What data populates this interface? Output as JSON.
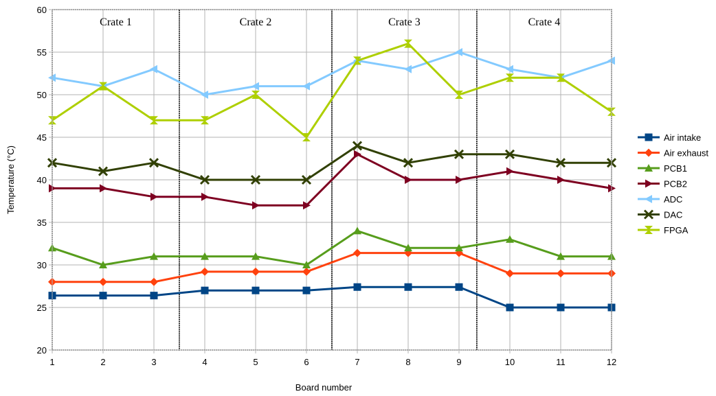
{
  "chart_data": {
    "type": "line",
    "title": "",
    "xlabel": "Board number",
    "ylabel": "Temperature (°C)",
    "x": [
      1,
      2,
      3,
      4,
      5,
      6,
      7,
      8,
      9,
      10,
      11,
      12
    ],
    "xlim": [
      1,
      12
    ],
    "ylim": [
      20,
      60
    ],
    "yticks": [
      20,
      25,
      30,
      35,
      40,
      45,
      50,
      55,
      60
    ],
    "grid": true,
    "legend": "right",
    "crates": [
      {
        "label": "Crate 1",
        "from": 1,
        "to": 3.5
      },
      {
        "label": "Crate 2",
        "from": 3.5,
        "to": 6.5
      },
      {
        "label": "Crate 3",
        "from": 6.5,
        "to": 9.35
      },
      {
        "label": "Crate 4",
        "from": 9.35,
        "to": 12
      }
    ],
    "series": [
      {
        "name": "Air intake",
        "color": "#004586",
        "marker": "square",
        "values": [
          26.4,
          26.4,
          26.4,
          27,
          27,
          27,
          27.4,
          27.4,
          27.4,
          25,
          25,
          25
        ]
      },
      {
        "name": "Air exhaust",
        "color": "#ff420e",
        "marker": "diamond",
        "values": [
          28,
          28,
          28,
          29.2,
          29.2,
          29.2,
          31.4,
          31.4,
          31.4,
          29,
          29,
          29
        ]
      },
      {
        "name": "PCB1",
        "color": "#579d1c",
        "marker": "triangle-up",
        "values": [
          32,
          30,
          31,
          31,
          31,
          30,
          34,
          32,
          32,
          33,
          31,
          31
        ]
      },
      {
        "name": "PCB2",
        "color": "#7e0021",
        "marker": "triangle-right",
        "values": [
          39,
          39,
          38,
          38,
          37,
          37,
          43,
          40,
          40,
          41,
          40,
          39
        ]
      },
      {
        "name": "ADC",
        "color": "#83caff",
        "marker": "triangle-left",
        "values": [
          52,
          51,
          53,
          50,
          51,
          51,
          54,
          53,
          55,
          53,
          52,
          54
        ]
      },
      {
        "name": "DAC",
        "color": "#314004",
        "marker": "x",
        "values": [
          42,
          41,
          42,
          40,
          40,
          40,
          44,
          42,
          43,
          43,
          42,
          42
        ]
      },
      {
        "name": "FPGA",
        "color": "#aecf00",
        "marker": "hourglass",
        "values": [
          47,
          51,
          47,
          47,
          50,
          45,
          54,
          56,
          50,
          52,
          52,
          48
        ]
      }
    ]
  }
}
